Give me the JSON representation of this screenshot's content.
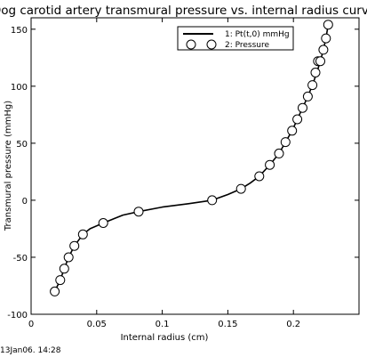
{
  "chart_data": {
    "type": "line",
    "title": "Dog carotid artery transmural pressure vs. internal radius curve",
    "xlabel": "Internal radius (cm)",
    "ylabel": "Transmural pressure (mmHg)",
    "xlim": [
      0,
      0.25
    ],
    "ylim": [
      -100,
      160
    ],
    "xticks": [
      0,
      0.05,
      0.1,
      0.15,
      0.2
    ],
    "xtick_labels": [
      "0",
      "0.05",
      "0.1",
      "0.15",
      "0.2"
    ],
    "yticks": [
      -100,
      -50,
      0,
      50,
      100,
      150
    ],
    "ytick_labels": [
      "-100",
      "-50",
      "0",
      "50",
      "100",
      "150"
    ],
    "grid": false,
    "legend_position": "top-right",
    "series": [
      {
        "name": "1: Pt(t,0) mmHg",
        "style": "line",
        "color": "#000000",
        "x": [
          0.018,
          0.0222,
          0.0253,
          0.0286,
          0.033,
          0.0395,
          0.045,
          0.055,
          0.07,
          0.082,
          0.1,
          0.12,
          0.138,
          0.15,
          0.16,
          0.167,
          0.174,
          0.182,
          0.189,
          0.194,
          0.199,
          0.203,
          0.207,
          0.211,
          0.2145,
          0.2178,
          0.2205,
          0.2228,
          0.2248,
          0.2265
        ],
        "y": [
          -80,
          -70,
          -60,
          -50,
          -40,
          -30,
          -25,
          -20,
          -13,
          -10,
          -6,
          -3,
          0,
          5,
          10,
          15,
          21,
          31,
          41,
          51,
          61,
          71,
          81,
          91,
          101,
          112,
          122,
          132,
          142,
          154
        ]
      },
      {
        "name": "2: Pressure",
        "style": "marker",
        "marker": "open-circle",
        "color": "#000000",
        "x": [
          0.018,
          0.0222,
          0.0253,
          0.0286,
          0.033,
          0.0395,
          0.055,
          0.082,
          0.138,
          0.16,
          0.174,
          0.182,
          0.189,
          0.194,
          0.199,
          0.203,
          0.207,
          0.211,
          0.2145,
          0.2168,
          0.2188,
          0.2205,
          0.2228,
          0.2248,
          0.2265
        ],
        "y": [
          -80,
          -70,
          -60,
          -50,
          -40,
          -30,
          -20,
          -10,
          0,
          10,
          21,
          31,
          41,
          51,
          61,
          71,
          81,
          91,
          101,
          112,
          122,
          122,
          132,
          142,
          154
        ]
      }
    ]
  },
  "footer": {
    "timestamp": "13Jan06. 14:28"
  }
}
